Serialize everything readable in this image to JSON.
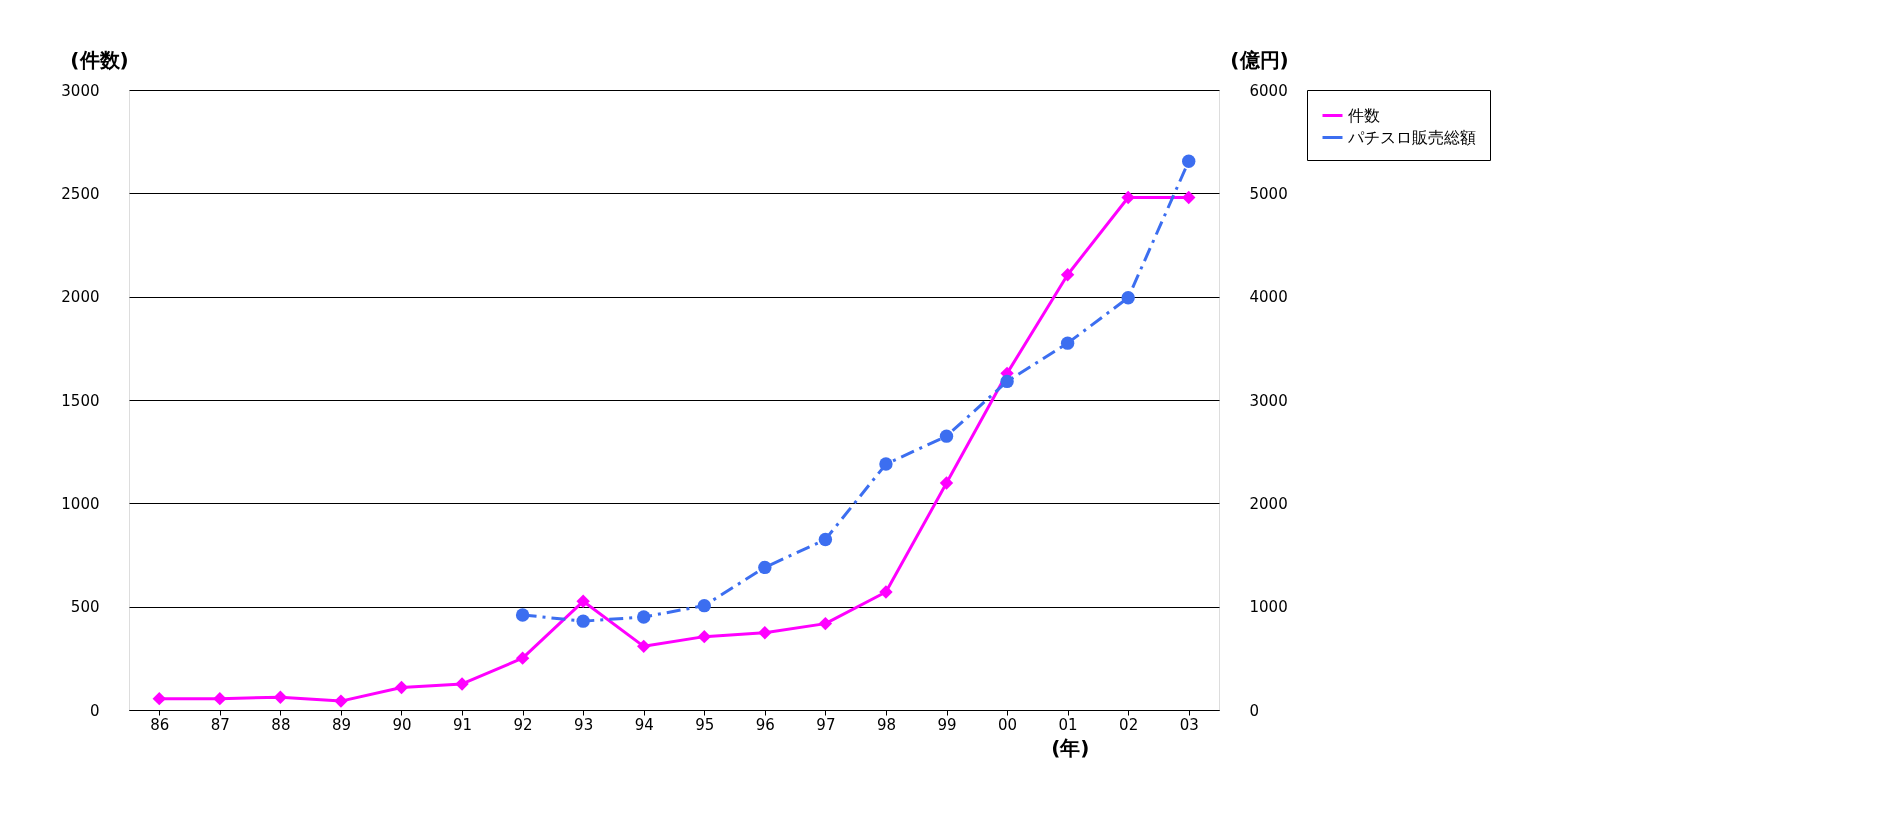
{
  "chart_data": {
    "type": "line",
    "xlabel": "(年)",
    "ylabel": "(件数)",
    "y2label": "(億円)",
    "categories": [
      "86",
      "87",
      "88",
      "89",
      "90",
      "91",
      "92",
      "93",
      "94",
      "95",
      "96",
      "97",
      "98",
      "99",
      "00",
      "01",
      "02",
      "03"
    ],
    "series": [
      {
        "name": "件数",
        "color": "#ff00ff",
        "marker": "diamond",
        "line_style": "solid",
        "values": [
          55,
          55,
          62,
          43,
          109,
          126,
          251,
          526,
          308,
          355,
          374,
          418,
          571,
          1098,
          1629,
          2106,
          2480,
          2480
        ]
      },
      {
        "name": "パチスロ販売総額",
        "color": "#3c6ef0",
        "marker": "circle",
        "line_style": "dashed",
        "axis": "y2",
        "values": [
          null,
          null,
          null,
          null,
          null,
          null,
          920,
          860,
          900,
          1010,
          1380,
          1650,
          2380,
          2650,
          3180,
          3550,
          3990,
          5310
        ]
      }
    ],
    "ylim": [
      0,
      3000
    ],
    "yticks": [
      0,
      500,
      1000,
      1500,
      2000,
      2500,
      3000
    ],
    "y2lim": [
      0,
      6000
    ],
    "y2ticks": [
      0,
      1000,
      2000,
      3000,
      4000,
      5000,
      6000
    ],
    "grid": "y",
    "legend": "right"
  }
}
